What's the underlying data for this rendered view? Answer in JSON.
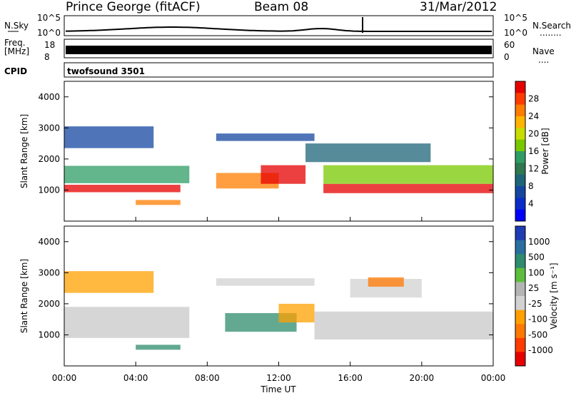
{
  "header": {
    "station": "Prince George (fitACF)",
    "beam": "Beam 08",
    "date": "31/Mar/2012"
  },
  "top_panels": {
    "nsky_label": "N.Sky",
    "nsearch_label": "N.Search",
    "noise_ticks": [
      "10^5",
      "10^0"
    ],
    "freq_label_1": "Freq.",
    "freq_label_2": "[MHz]",
    "freq_ticks": [
      "18",
      "8"
    ],
    "nave_label": "Nave",
    "nave_ticks": [
      "60",
      "0"
    ],
    "cpid_label": "CPID",
    "cpid_text": "twofsound 3501",
    "legend_dots": "........",
    "legend_dots_short": "...."
  },
  "chart_data": [
    {
      "type": "heatmap",
      "panel": "power",
      "ylabel": "Slant Range [km]",
      "xlabel": "",
      "xlim": [
        "00:00",
        "24:00"
      ],
      "ylim": [
        0,
        4500
      ],
      "y_ticks": [
        "1000",
        "2000",
        "3000",
        "4000"
      ],
      "colorbar_label": "Power [dB]",
      "colorbar_ticks": [
        "28",
        "24",
        "20",
        "16",
        "12",
        "8",
        "4"
      ],
      "colorbar_colors": [
        "#e60000",
        "#ff3c00",
        "#ff7d00",
        "#ffb400",
        "#c8dc00",
        "#78c800",
        "#2f9c64",
        "#2f7850",
        "#1e6478",
        "#1446a0",
        "#0a2dc8",
        "#0000ff"
      ],
      "bands": [
        {
          "start": "00:00",
          "end": "06:30",
          "center": 1050,
          "half_width": 120,
          "color": "#e60000"
        },
        {
          "start": "00:00",
          "end": "07:00",
          "center": 1500,
          "half_width": 280,
          "color": "#2f9c64"
        },
        {
          "start": "00:00",
          "end": "05:00",
          "center": 2700,
          "half_width": 350,
          "color": "#1446a0"
        },
        {
          "start": "04:00",
          "end": "06:30",
          "center": 600,
          "half_width": 80,
          "color": "#ff7d00"
        },
        {
          "start": "08:30",
          "end": "14:00",
          "center": 2700,
          "half_width": 120,
          "color": "#1446a0"
        },
        {
          "start": "08:30",
          "end": "12:00",
          "center": 1300,
          "half_width": 250,
          "color": "#ff7d00"
        },
        {
          "start": "11:00",
          "end": "13:30",
          "center": 1500,
          "half_width": 300,
          "color": "#e60000"
        },
        {
          "start": "13:30",
          "end": "20:30",
          "center": 2200,
          "half_width": 300,
          "color": "#1e6478"
        },
        {
          "start": "14:30",
          "end": "24:00",
          "center": 1050,
          "half_width": 150,
          "color": "#e60000"
        },
        {
          "start": "14:30",
          "end": "24:00",
          "center": 1500,
          "half_width": 300,
          "color": "#78c800"
        }
      ]
    },
    {
      "type": "heatmap",
      "panel": "velocity",
      "ylabel": "Slant Range [km]",
      "xlabel": "Time UT",
      "xlim": [
        "00:00",
        "24:00"
      ],
      "ylim": [
        0,
        4500
      ],
      "x_ticks": [
        "00:00",
        "04:00",
        "08:00",
        "12:00",
        "16:00",
        "20:00",
        "00:00"
      ],
      "y_ticks": [
        "1000",
        "2000",
        "3000",
        "4000"
      ],
      "colorbar_label": "Velocity [m s⁻¹]",
      "colorbar_ticks": [
        "1000",
        "500",
        "100",
        "25",
        "-25",
        "-100",
        "-500",
        "-1000"
      ],
      "colorbar_colors": [
        "#1e3cb4",
        "#2a6ea0",
        "#2f8c6e",
        "#5cbe3c",
        "#b4b4b4",
        "#d2d2d2",
        "#ffa000",
        "#ff7800",
        "#ff3c00",
        "#e60000"
      ],
      "bands": [
        {
          "start": "00:00",
          "end": "07:00",
          "center": 1400,
          "half_width": 500,
          "color": "#c8c8c8"
        },
        {
          "start": "00:00",
          "end": "05:00",
          "center": 2700,
          "half_width": 350,
          "color": "#ffa000"
        },
        {
          "start": "04:00",
          "end": "06:30",
          "center": 600,
          "half_width": 80,
          "color": "#2f8c6e"
        },
        {
          "start": "08:30",
          "end": "14:00",
          "center": 2700,
          "half_width": 120,
          "color": "#d2d2d2"
        },
        {
          "start": "09:00",
          "end": "13:00",
          "center": 1400,
          "half_width": 300,
          "color": "#2f8c6e"
        },
        {
          "start": "12:00",
          "end": "14:00",
          "center": 1700,
          "half_width": 300,
          "color": "#ffa000"
        },
        {
          "start": "14:00",
          "end": "24:00",
          "center": 1300,
          "half_width": 450,
          "color": "#c8c8c8"
        },
        {
          "start": "16:00",
          "end": "20:00",
          "center": 2500,
          "half_width": 300,
          "color": "#d2d2d2"
        },
        {
          "start": "17:00",
          "end": "19:00",
          "center": 2700,
          "half_width": 150,
          "color": "#ff7800"
        }
      ]
    }
  ]
}
